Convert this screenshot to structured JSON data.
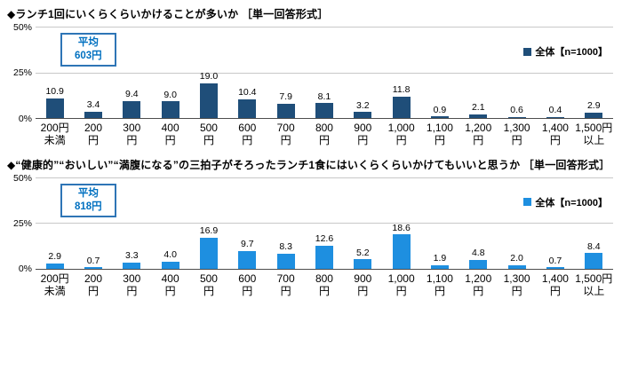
{
  "styles": {
    "bar_color_top": "#1F4E79",
    "bar_color_bottom": "#1E8FE0",
    "avg_box_border": "#2E75B6",
    "avg_text_color": "#0070C0"
  },
  "chart_data": [
    {
      "type": "bar",
      "title": "◆ランチ1回にいくらくらいかけることが多いか ［単一回答形式］",
      "legend": "全体【n=1000】",
      "average": {
        "label": "平均",
        "value": "603円"
      },
      "bar_color": "#1F4E79",
      "ylim": [
        0,
        50
      ],
      "yticks": [
        "50%",
        "25%",
        "0%"
      ],
      "grid": true,
      "legend_position": "right",
      "categories": [
        "200円未満",
        "200円",
        "300円",
        "400円",
        "500円",
        "600円",
        "700円",
        "800円",
        "900円",
        "1,000円",
        "1,100円",
        "1,200円",
        "1,300円",
        "1,400円",
        "1,500円以上"
      ],
      "category_labels": [
        "200円\n未満",
        "200\n円",
        "300\n円",
        "400\n円",
        "500\n円",
        "600\n円",
        "700\n円",
        "800\n円",
        "900\n円",
        "1,000\n円",
        "1,100\n円",
        "1,200\n円",
        "1,300\n円",
        "1,400\n円",
        "1,500円\n以上"
      ],
      "values": [
        10.9,
        3.4,
        9.4,
        9.0,
        19.0,
        10.4,
        7.9,
        8.1,
        3.2,
        11.8,
        0.9,
        2.1,
        0.6,
        0.4,
        2.9
      ]
    },
    {
      "type": "bar",
      "title": "◆“健康的”“おいしい”“満腹になる”の三拍子がそろったランチ1食にはいくらくらいかけてもいいと思うか ［単一回答形式］",
      "legend": "全体【n=1000】",
      "average": {
        "label": "平均",
        "value": "818円"
      },
      "bar_color": "#1E8FE0",
      "ylim": [
        0,
        50
      ],
      "yticks": [
        "50%",
        "25%",
        "0%"
      ],
      "grid": true,
      "legend_position": "right",
      "categories": [
        "200円未満",
        "200円",
        "300円",
        "400円",
        "500円",
        "600円",
        "700円",
        "800円",
        "900円",
        "1,000円",
        "1,100円",
        "1,200円",
        "1,300円",
        "1,400円",
        "1,500円以上"
      ],
      "category_labels": [
        "200円\n未満",
        "200\n円",
        "300\n円",
        "400\n円",
        "500\n円",
        "600\n円",
        "700\n円",
        "800\n円",
        "900\n円",
        "1,000\n円",
        "1,100\n円",
        "1,200\n円",
        "1,300\n円",
        "1,400\n円",
        "1,500円\n以上"
      ],
      "values": [
        2.9,
        0.7,
        3.3,
        4.0,
        16.9,
        9.7,
        8.3,
        12.6,
        5.2,
        18.6,
        1.9,
        4.8,
        2.0,
        0.7,
        8.4
      ]
    }
  ]
}
